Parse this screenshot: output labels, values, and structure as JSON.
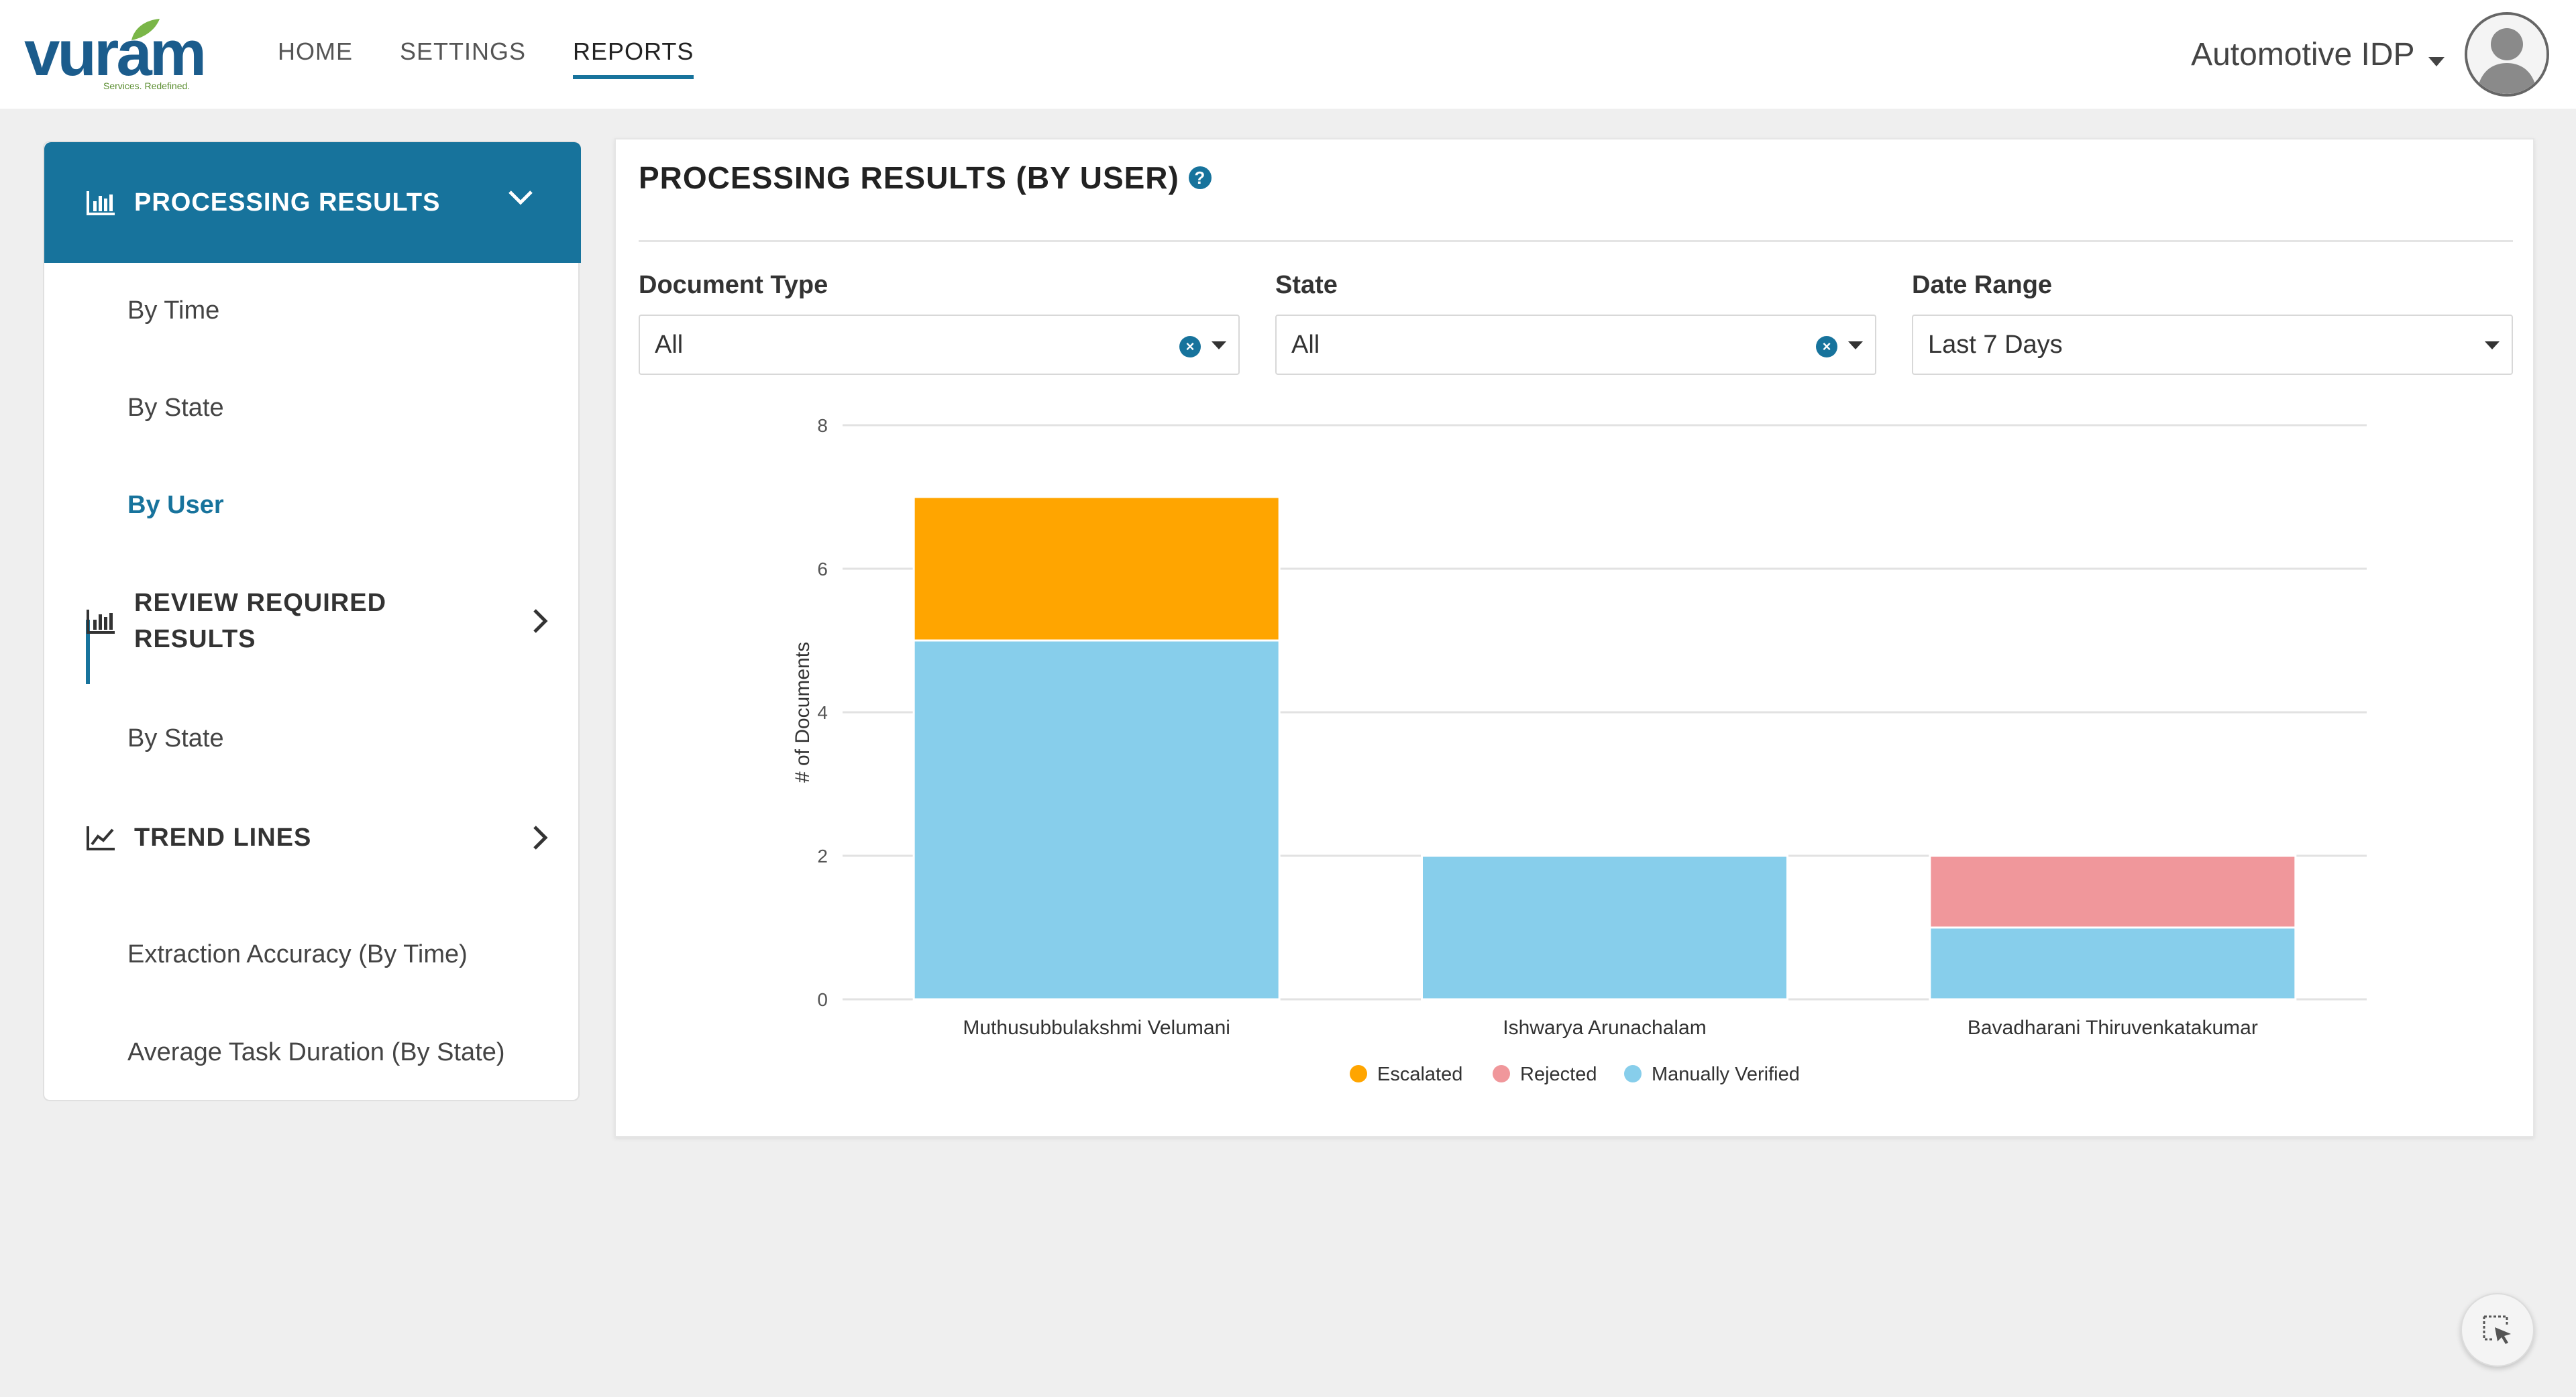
{
  "header": {
    "logo_text": "vuram",
    "logo_tagline": "Services. Redefined.",
    "nav": [
      {
        "label": "HOME",
        "active": false
      },
      {
        "label": "SETTINGS",
        "active": false
      },
      {
        "label": "REPORTS",
        "active": true
      }
    ],
    "user_name": "Automotive IDP"
  },
  "sidebar": {
    "processing_results": {
      "label": "PROCESSING RESULTS",
      "items": [
        "By Time",
        "By State",
        "By User"
      ],
      "active_item": "By User"
    },
    "review_required": {
      "label": "REVIEW REQUIRED RESULTS",
      "items": [
        "By State"
      ]
    },
    "trend_lines": {
      "label": "TREND LINES",
      "items": [
        "Extraction Accuracy (By Time)",
        "Average Task Duration (By State)"
      ]
    }
  },
  "panel": {
    "title": "PROCESSING RESULTS (BY USER)",
    "filters": [
      {
        "label": "Document Type",
        "value": "All",
        "clearable": true
      },
      {
        "label": "State",
        "value": "All",
        "clearable": true
      },
      {
        "label": "Date Range",
        "value": "Last 7 Days",
        "clearable": false
      }
    ]
  },
  "colors": {
    "accent": "#17739c",
    "escalated": "#ffa500",
    "rejected": "#f0979b",
    "manually_verified": "#87ceeb"
  },
  "chart_data": {
    "type": "bar",
    "stacked": true,
    "categories": [
      "Muthusubbulakshmi Velumani",
      "Ishwarya Arunachalam",
      "Bavadharani Thiruvenkatakumar"
    ],
    "series": [
      {
        "name": "Manually Verified",
        "color": "#87ceeb",
        "values": [
          5,
          2,
          1
        ]
      },
      {
        "name": "Rejected",
        "color": "#f0979b",
        "values": [
          0,
          0,
          1
        ]
      },
      {
        "name": "Escalated",
        "color": "#ffa500",
        "values": [
          2,
          0,
          0
        ]
      }
    ],
    "legend_order": [
      "Escalated",
      "Rejected",
      "Manually Verified"
    ],
    "ylabel": "# of Documents",
    "ylim": [
      0,
      8
    ],
    "yticks": [
      0,
      2,
      4,
      6,
      8
    ],
    "grid": true,
    "legend_position": "bottom"
  }
}
